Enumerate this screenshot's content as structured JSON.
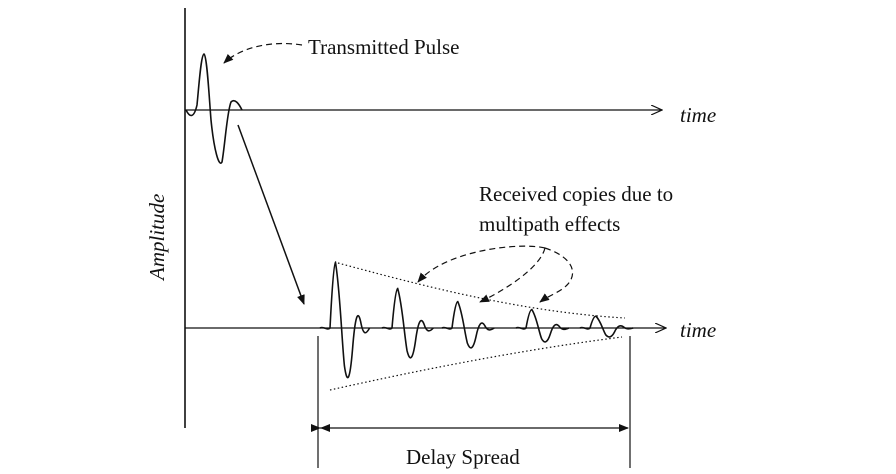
{
  "labels": {
    "transmitted_pulse": "Transmitted Pulse",
    "time_top": "time",
    "time_bottom": "time",
    "amplitude": "Amplitude",
    "received_line1": "Received copies due to",
    "received_line2": "multipath effects",
    "delay_spread": "Delay Spread"
  },
  "colors": {
    "ink": "#111111",
    "background": "#ffffff"
  },
  "received_copies": {
    "count": 5,
    "relative_amplitudes": [
      1.0,
      0.6,
      0.4,
      0.28,
      0.18
    ]
  }
}
